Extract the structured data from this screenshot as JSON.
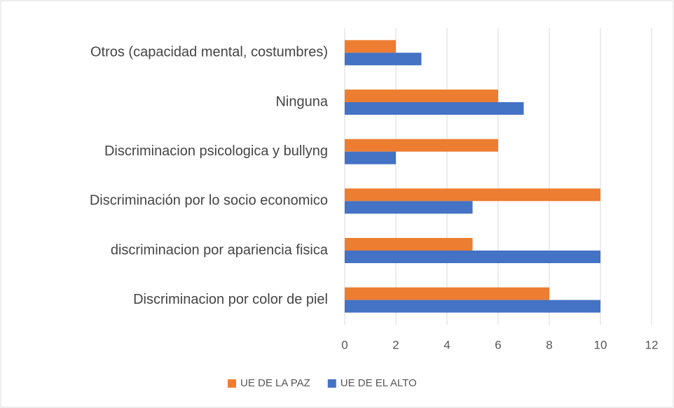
{
  "chart_data": {
    "type": "barh",
    "categories": [
      "Otros (capacidad mental, costumbres)",
      "Ninguna",
      "Discriminacion psicologica y bullyng",
      "Discriminación por lo socio economico",
      "discriminacion por apariencia fisica",
      "Discriminacion por color de piel"
    ],
    "series": [
      {
        "name": "UE DE LA PAZ",
        "color": "#ed7d31",
        "values": [
          2,
          6,
          6,
          10,
          5,
          8
        ]
      },
      {
        "name": "UE DE EL ALTO",
        "color": "#4472c4",
        "values": [
          3,
          7,
          2,
          5,
          10,
          10
        ]
      }
    ],
    "xlim": [
      0,
      12
    ],
    "xticks": [
      0,
      2,
      4,
      6,
      8,
      10,
      12
    ],
    "grid": true,
    "legend": "bottom"
  }
}
